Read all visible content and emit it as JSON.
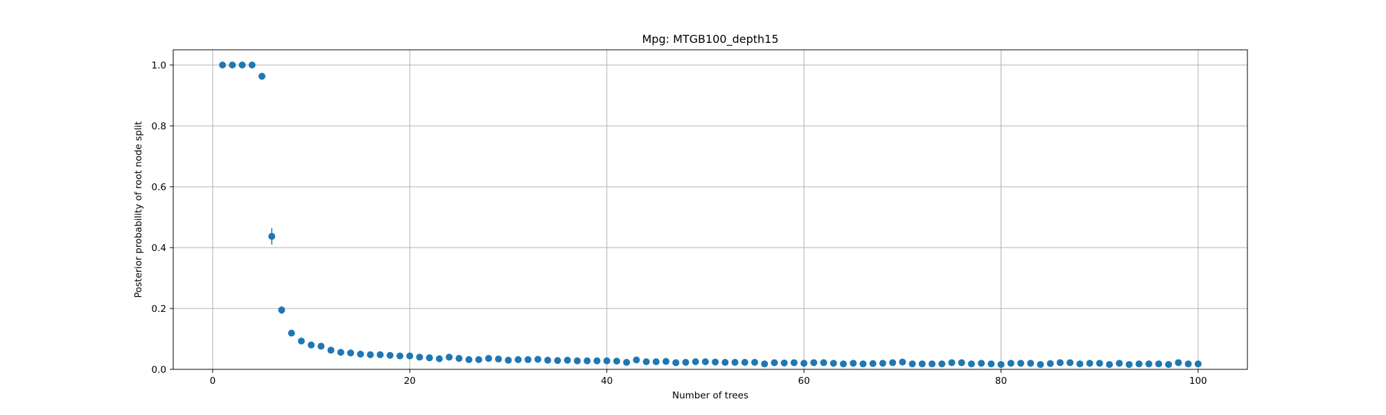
{
  "chart_data": {
    "type": "scatter",
    "title": "Mpg: MTGB100_depth15",
    "xlabel": "Number of trees",
    "ylabel": "Posterior probability of root node split",
    "xlim": [
      -4,
      105
    ],
    "ylim": [
      0,
      1.05
    ],
    "xticks": [
      0,
      20,
      40,
      60,
      80,
      100
    ],
    "yticks": [
      0.0,
      0.2,
      0.4,
      0.6,
      0.8,
      1.0
    ],
    "xtick_labels": [
      "0",
      "20",
      "40",
      "60",
      "80",
      "100"
    ],
    "ytick_labels": [
      "0.0",
      "0.2",
      "0.4",
      "0.6",
      "0.8",
      "1.0"
    ],
    "grid": true,
    "point_color": "#1f77b4",
    "x": [
      1,
      2,
      3,
      4,
      5,
      6,
      7,
      8,
      9,
      10,
      11,
      12,
      13,
      14,
      15,
      16,
      17,
      18,
      19,
      20,
      21,
      22,
      23,
      24,
      25,
      26,
      27,
      28,
      29,
      30,
      31,
      32,
      33,
      34,
      35,
      36,
      37,
      38,
      39,
      40,
      41,
      42,
      43,
      44,
      45,
      46,
      47,
      48,
      49,
      50,
      51,
      52,
      53,
      54,
      55,
      56,
      57,
      58,
      59,
      60,
      61,
      62,
      63,
      64,
      65,
      66,
      67,
      68,
      69,
      70,
      71,
      72,
      73,
      74,
      75,
      76,
      77,
      78,
      79,
      80,
      81,
      82,
      83,
      84,
      85,
      86,
      87,
      88,
      89,
      90,
      91,
      92,
      93,
      94,
      95,
      96,
      97,
      98,
      99,
      100
    ],
    "y": [
      1.0,
      1.0,
      1.0,
      1.0,
      0.963,
      0.437,
      0.195,
      0.119,
      0.093,
      0.08,
      0.076,
      0.063,
      0.056,
      0.054,
      0.05,
      0.048,
      0.048,
      0.046,
      0.044,
      0.044,
      0.04,
      0.038,
      0.035,
      0.04,
      0.036,
      0.032,
      0.032,
      0.036,
      0.034,
      0.03,
      0.032,
      0.032,
      0.033,
      0.03,
      0.029,
      0.03,
      0.028,
      0.028,
      0.028,
      0.028,
      0.027,
      0.023,
      0.031,
      0.025,
      0.025,
      0.026,
      0.022,
      0.023,
      0.025,
      0.025,
      0.024,
      0.023,
      0.023,
      0.023,
      0.023,
      0.018,
      0.022,
      0.021,
      0.022,
      0.02,
      0.022,
      0.022,
      0.02,
      0.018,
      0.02,
      0.018,
      0.019,
      0.02,
      0.022,
      0.024,
      0.018,
      0.018,
      0.018,
      0.018,
      0.022,
      0.022,
      0.018,
      0.02,
      0.018,
      0.016,
      0.02,
      0.02,
      0.02,
      0.016,
      0.019,
      0.022,
      0.022,
      0.018,
      0.02,
      0.02,
      0.016,
      0.02,
      0.016,
      0.018,
      0.018,
      0.018,
      0.016,
      0.022,
      0.018,
      0.018
    ],
    "yerr": [
      0,
      0,
      0,
      0,
      0.004,
      0.027,
      0.013,
      0.005,
      0.004,
      0.004,
      0.004,
      0.003,
      0.003,
      0.003,
      0.003,
      0.003,
      0.003,
      0.003,
      0.003,
      0.003,
      0.003,
      0.003,
      0.003,
      0.003,
      0.003,
      0.003,
      0.003,
      0.003,
      0.003,
      0.003,
      0.003,
      0.003,
      0.003,
      0.003,
      0.003,
      0.003,
      0.003,
      0.003,
      0.003,
      0.003,
      0.003,
      0.003,
      0.003,
      0.003,
      0.003,
      0.003,
      0.003,
      0.003,
      0.003,
      0.003,
      0.003,
      0.003,
      0.003,
      0.003,
      0.003,
      0.003,
      0.003,
      0.003,
      0.003,
      0.003,
      0.003,
      0.003,
      0.003,
      0.003,
      0.003,
      0.003,
      0.003,
      0.003,
      0.003,
      0.003,
      0.003,
      0.003,
      0.003,
      0.003,
      0.003,
      0.003,
      0.003,
      0.003,
      0.003,
      0.003,
      0.003,
      0.003,
      0.003,
      0.003,
      0.003,
      0.003,
      0.003,
      0.003,
      0.003,
      0.003,
      0.003,
      0.003,
      0.003,
      0.003,
      0.003,
      0.003,
      0.003,
      0.003,
      0.003,
      0.003
    ]
  }
}
